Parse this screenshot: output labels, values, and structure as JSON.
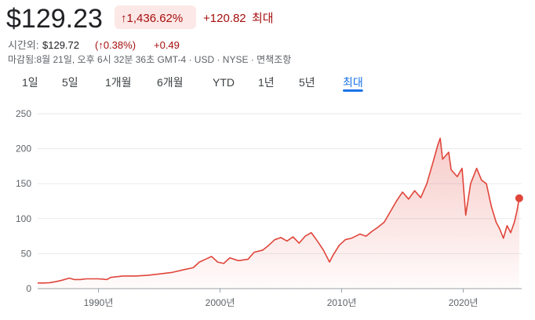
{
  "header": {
    "price": "$129.23",
    "change_pct": "↑1,436.62%",
    "change": "+120.82",
    "period": "최대",
    "after_hours_label": "시간외:",
    "after_hours_price": "$129.72",
    "after_hours_pct": "(↑0.38%)",
    "after_hours_change": "+0.49",
    "note": "마감됨:8월 21일, 오후 6시 32분 36초 GMT-4 · USD · NYSE · 면책조항"
  },
  "tabs": [
    "1일",
    "5일",
    "1개월",
    "6개월",
    "YTD",
    "1년",
    "5년",
    "최대"
  ],
  "selected_tab": 7,
  "chart_data": {
    "type": "line",
    "color": "#e0453a",
    "grid": true,
    "x": [
      1985.0,
      1985.5,
      1986,
      1986.5,
      1987,
      1987.6,
      1988,
      1988.5,
      1989,
      1990,
      1990.7,
      1991,
      1992,
      1993,
      1994,
      1995,
      1996,
      1997,
      1997.8,
      1998.3,
      1998.8,
      1999.3,
      1999.8,
      2000.3,
      2000.8,
      2001.5,
      2002.3,
      2002.8,
      2003.5,
      2004,
      2004.5,
      2005,
      2005.5,
      2006,
      2006.5,
      2007,
      2007.5,
      2008,
      2008.5,
      2009.0,
      2009.3,
      2009.8,
      2010.3,
      2010.8,
      2011.5,
      2012,
      2012.5,
      2013,
      2013.5,
      2014,
      2014.5,
      2015,
      2015.5,
      2016,
      2016.5,
      2017,
      2017.5,
      2017.9,
      2018.1,
      2018.3,
      2018.8,
      2019,
      2019.5,
      2019.9,
      2020.2,
      2020.6,
      2021.1,
      2021.5,
      2021.9,
      2022.3,
      2022.7,
      2023,
      2023.3,
      2023.6,
      2023.9,
      2024.2,
      2024.4,
      2024.6
    ],
    "values": [
      8,
      8,
      8.5,
      10,
      12,
      15,
      13,
      13,
      14,
      14,
      13,
      16,
      18,
      18,
      19,
      21,
      23,
      27,
      30,
      38,
      42,
      46,
      38,
      36,
      44,
      40,
      42,
      52,
      55,
      62,
      70,
      73,
      68,
      74,
      65,
      75,
      80,
      68,
      55,
      38,
      48,
      62,
      70,
      72,
      78,
      75,
      82,
      88,
      95,
      110,
      125,
      138,
      128,
      140,
      130,
      150,
      180,
      205,
      215,
      185,
      195,
      170,
      160,
      172,
      105,
      150,
      172,
      155,
      150,
      118,
      95,
      85,
      72,
      90,
      80,
      95,
      110,
      129.23
    ],
    "xlim": [
      1985,
      2024.8
    ],
    "ylim": [
      0,
      250
    ],
    "xticks": [
      {
        "value": 1990,
        "label": "1990년"
      },
      {
        "value": 2000,
        "label": "2000년"
      },
      {
        "value": 2010,
        "label": "2010년"
      },
      {
        "value": 2020,
        "label": "2020년"
      }
    ],
    "yticks": [
      0,
      50,
      100,
      150,
      200,
      250
    ]
  }
}
